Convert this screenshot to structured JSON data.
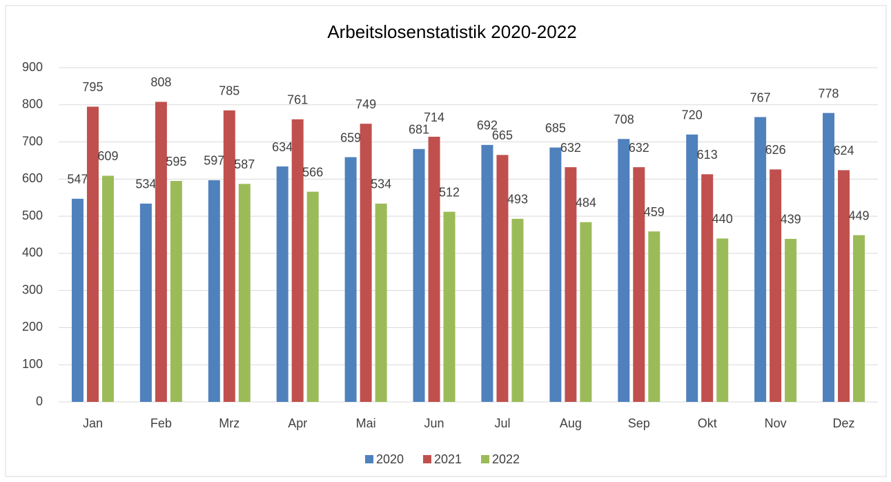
{
  "chart_data": {
    "type": "bar",
    "title": "Arbeitslosenstatistik 2020-2022",
    "categories": [
      "Jan",
      "Feb",
      "Mrz",
      "Apr",
      "Mai",
      "Jun",
      "Jul",
      "Aug",
      "Sep",
      "Okt",
      "Nov",
      "Dez"
    ],
    "series": [
      {
        "name": "2020",
        "color": "#4f81bd",
        "values": [
          547,
          534,
          597,
          634,
          659,
          681,
          692,
          685,
          708,
          720,
          767,
          778
        ]
      },
      {
        "name": "2021",
        "color": "#c0504d",
        "values": [
          795,
          808,
          785,
          761,
          749,
          714,
          665,
          632,
          632,
          613,
          626,
          624
        ]
      },
      {
        "name": "2022",
        "color": "#9bbb59",
        "values": [
          609,
          595,
          587,
          566,
          534,
          512,
          493,
          484,
          459,
          440,
          439,
          449
        ]
      }
    ],
    "ylim": [
      0,
      900
    ],
    "yticks": [
      0,
      100,
      200,
      300,
      400,
      500,
      600,
      700,
      800,
      900
    ],
    "grid": true,
    "legend": "bottom"
  }
}
